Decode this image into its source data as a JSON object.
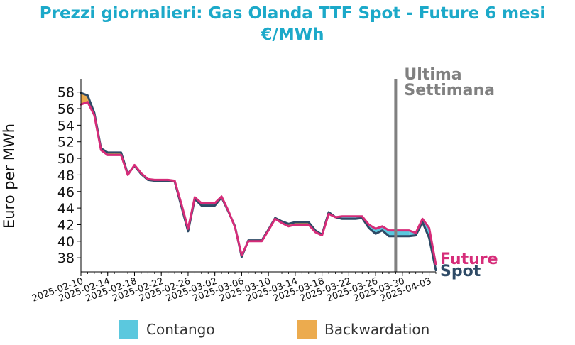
{
  "chart_data": {
    "type": "line",
    "title": "Prezzi giornalieri: Gas Olanda TTF Spot - Future 6 mesi",
    "subtitle": "€/MWh",
    "ylabel": "Euro per MWh",
    "xlabel": "",
    "ylim": [
      36.3,
      59.6
    ],
    "y_ticks": [
      38,
      40,
      42,
      44,
      46,
      48,
      50,
      52,
      54,
      56,
      58
    ],
    "x_range": [
      "2025-02-10",
      "2025-04-04"
    ],
    "x_ticks": [
      "2025-02-10",
      "2025-02-14",
      "2025-02-18",
      "2025-02-22",
      "2025-02-26",
      "2025-03-02",
      "2025-03-06",
      "2025-03-10",
      "2025-03-14",
      "2025-03-18",
      "2025-03-22",
      "2025-03-26",
      "2025-03-30",
      "2025-04-03"
    ],
    "x": [
      "2025-02-10",
      "2025-02-11",
      "2025-02-12",
      "2025-02-13",
      "2025-02-14",
      "2025-02-15",
      "2025-02-16",
      "2025-02-17",
      "2025-02-18",
      "2025-02-19",
      "2025-02-20",
      "2025-02-21",
      "2025-02-22",
      "2025-02-23",
      "2025-02-24",
      "2025-02-25",
      "2025-02-26",
      "2025-02-27",
      "2025-02-28",
      "2025-03-01",
      "2025-03-02",
      "2025-03-03",
      "2025-03-04",
      "2025-03-05",
      "2025-03-06",
      "2025-03-07",
      "2025-03-08",
      "2025-03-09",
      "2025-03-10",
      "2025-03-11",
      "2025-03-12",
      "2025-03-13",
      "2025-03-14",
      "2025-03-15",
      "2025-03-16",
      "2025-03-17",
      "2025-03-18",
      "2025-03-19",
      "2025-03-20",
      "2025-03-21",
      "2025-03-22",
      "2025-03-23",
      "2025-03-24",
      "2025-03-25",
      "2025-03-26",
      "2025-03-27",
      "2025-03-28",
      "2025-03-29",
      "2025-03-30",
      "2025-03-31",
      "2025-04-01",
      "2025-04-02",
      "2025-04-03",
      "2025-04-04"
    ],
    "series": [
      {
        "name": "Spot",
        "color": "#2e4a66",
        "values": [
          57.9,
          57.6,
          55.5,
          51.2,
          50.7,
          50.7,
          50.7,
          48.1,
          49.1,
          48.1,
          47.4,
          47.3,
          47.3,
          47.3,
          47.2,
          44.2,
          41.2,
          45.1,
          44.3,
          44.3,
          44.3,
          45.3,
          43.6,
          41.8,
          38.1,
          40.1,
          40.1,
          40.1,
          41.4,
          42.8,
          42.4,
          42.1,
          42.3,
          42.3,
          42.3,
          41.3,
          40.8,
          43.5,
          42.9,
          42.7,
          42.7,
          42.7,
          42.8,
          41.6,
          40.9,
          41.3,
          40.6,
          40.6,
          40.6,
          40.6,
          40.7,
          42.3,
          40.4,
          36.5
        ]
      },
      {
        "name": "Future",
        "color": "#d62c79",
        "values": [
          56.5,
          56.8,
          55.2,
          51.0,
          50.4,
          50.4,
          50.4,
          48.0,
          49.2,
          48.2,
          47.5,
          47.4,
          47.4,
          47.4,
          47.3,
          44.5,
          41.5,
          45.3,
          44.6,
          44.6,
          44.6,
          45.4,
          43.7,
          41.7,
          38.3,
          40.0,
          40.0,
          40.0,
          41.3,
          42.7,
          42.2,
          41.8,
          42.0,
          42.0,
          42.0,
          41.1,
          40.7,
          43.3,
          42.9,
          43.0,
          43.0,
          43.0,
          43.0,
          42.0,
          41.5,
          41.8,
          41.3,
          41.3,
          41.3,
          41.3,
          41.0,
          42.7,
          41.6,
          37.2
        ]
      }
    ],
    "fill_legend": [
      {
        "label": "Contango",
        "color": "#5bc8de"
      },
      {
        "label": "Backwardation",
        "color": "#ecab4e"
      }
    ],
    "vline": {
      "x": "2025-03-29",
      "label_line1": "Ultima",
      "label_line2": "Settimana",
      "color": "#808080"
    },
    "end_labels": {
      "future": "Future",
      "spot": "Spot"
    },
    "title_color": "#1ca9c9"
  }
}
